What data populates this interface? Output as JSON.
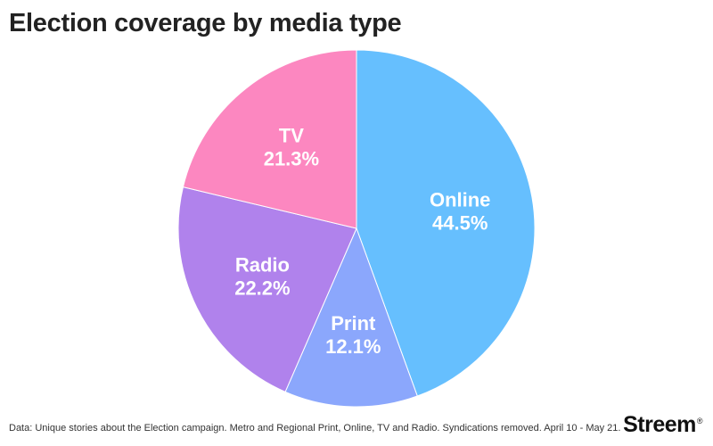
{
  "header": {
    "title": "Election coverage by media type"
  },
  "chart_data": {
    "type": "pie",
    "categories": [
      "Online",
      "Print",
      "Radio",
      "TV"
    ],
    "values": [
      44.5,
      12.1,
      22.2,
      21.3
    ],
    "value_labels": [
      "44.5%",
      "12.1%",
      "22.2%",
      "21.3%"
    ],
    "start": "12 o'clock",
    "direction": "clockwise",
    "colors": [
      "#66bffe",
      "#8ba7fc",
      "#b082ec",
      "#fc87c0"
    ],
    "title": "Election coverage by media type"
  },
  "footer": {
    "note": "Data: Unique stories about the Election campaign. Metro and Regional Print, Online, TV and Radio. Syndications removed. April 10 - May 21.",
    "brand": "Streem",
    "brand_mark": "®"
  }
}
